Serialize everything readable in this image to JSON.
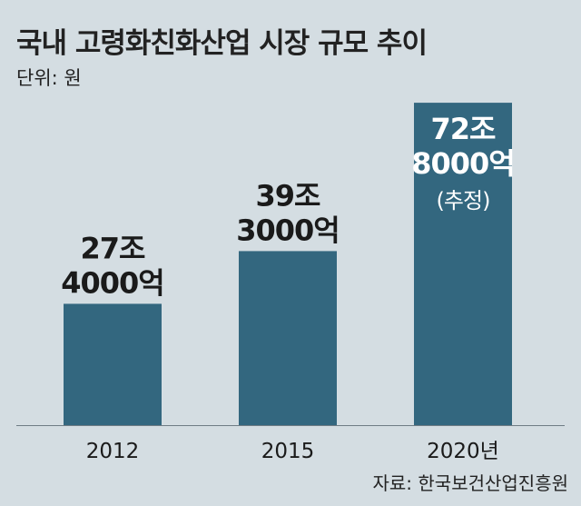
{
  "chart_data": {
    "type": "bar",
    "title": "국내 고령화친화산업 시장 규모 추이",
    "unit_label": "단위: 원",
    "source": "자료: 한국보건산업진흥원",
    "categories": [
      "2012",
      "2015",
      "2020년"
    ],
    "values": [
      27.4,
      39.3,
      72.8
    ],
    "value_unit": "조 원",
    "data_labels": [
      [
        "27조",
        "4000억"
      ],
      [
        "39조",
        "3000억"
      ],
      [
        "72조",
        "8000억",
        "(추정)"
      ]
    ],
    "ylim": [
      0,
      80
    ],
    "grid": false,
    "colors": {
      "bar": "#33677f",
      "background": "#d4dde2",
      "text": "#1a1a1a",
      "label_inside": "#ffffff"
    }
  }
}
